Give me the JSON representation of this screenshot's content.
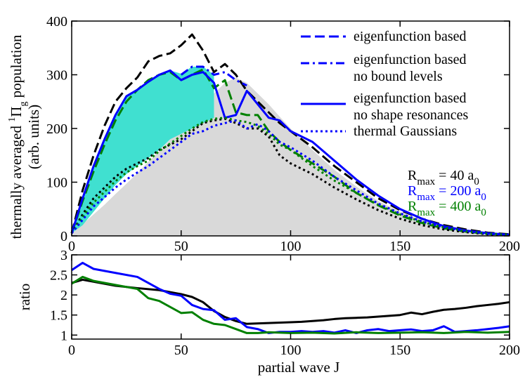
{
  "chart_data": [
    {
      "type": "line",
      "panel": "top",
      "ylabel_main": "thermally averaged ",
      "ylabel_sup": "1",
      "ylabel_pi": "Π",
      "ylabel_sub": "g",
      "ylabel_end": " population",
      "ylabel_units": "(arb. units)",
      "xlim": [
        0,
        200
      ],
      "ylim": [
        0,
        400
      ],
      "xticks": [
        0,
        50,
        100,
        150,
        200
      ],
      "yticks": [
        0,
        100,
        200,
        300,
        400
      ],
      "legend": [
        {
          "label": "eigenfunction based",
          "style": "dashed"
        },
        {
          "label": "eigenfunction based",
          "label2": "no bound levels",
          "style": "dashdot"
        },
        {
          "label": "eigenfunction based",
          "label2": "no shape resonances",
          "style": "solid"
        },
        {
          "label": "thermal Gaussians",
          "style": "dotted"
        }
      ],
      "rmax_labels": [
        {
          "pre": "R",
          "sub": "max",
          "mid": " = 40 a",
          "sub2": "0",
          "color": "#000000"
        },
        {
          "pre": "R",
          "sub": "max",
          "mid": " = 200 a",
          "sub2": "0",
          "color": "#0000ff"
        },
        {
          "pre": "R",
          "sub": "max",
          "mid": " = 400 a",
          "sub2": "0",
          "color": "#008000"
        }
      ],
      "shaded_regions": [
        {
          "name": "gray-area",
          "color": "#d9d9d9",
          "x": [
            0,
            5,
            10,
            15,
            20,
            25,
            30,
            35,
            40,
            45,
            50,
            55,
            60,
            65,
            70,
            75,
            80,
            85,
            90,
            95,
            100,
            110,
            120,
            130,
            140,
            150,
            160,
            170,
            180,
            190,
            200
          ],
          "y": [
            5,
            22,
            40,
            58,
            78,
            97,
            117,
            138,
            158,
            180,
            200,
            220,
            242,
            265,
            285,
            295,
            285,
            265,
            245,
            222,
            200,
            160,
            123,
            92,
            65,
            45,
            29,
            17,
            9,
            4,
            2
          ]
        },
        {
          "name": "cyan-area",
          "color": "#40e0d0",
          "upper_x": [
            0,
            5,
            10,
            15,
            20,
            25,
            30,
            35,
            40,
            45,
            50,
            55,
            60,
            65
          ],
          "upper_y": [
            5,
            70,
            130,
            180,
            225,
            260,
            272,
            287,
            300,
            308,
            302,
            315,
            315,
            300
          ],
          "lower_x": [
            65,
            60,
            55,
            50,
            45,
            40,
            35,
            30,
            25,
            20,
            15,
            10,
            5,
            0
          ],
          "lower_y": [
            220,
            210,
            200,
            190,
            180,
            160,
            145,
            130,
            115,
            95,
            70,
            45,
            20,
            5
          ]
        }
      ],
      "series": [
        {
          "name": "R=40 dashed",
          "color": "#000000",
          "style": "dashed",
          "x": [
            0,
            5,
            10,
            15,
            20,
            25,
            30,
            35,
            40,
            45,
            50,
            55,
            60,
            65,
            70,
            75,
            80,
            85,
            90,
            95,
            100,
            110,
            120,
            130,
            140,
            150,
            160,
            170,
            180,
            190,
            200
          ],
          "y": [
            5,
            85,
            150,
            205,
            250,
            275,
            295,
            325,
            335,
            340,
            355,
            375,
            345,
            305,
            320,
            300,
            270,
            250,
            230,
            210,
            195,
            165,
            130,
            100,
            70,
            48,
            32,
            20,
            12,
            6,
            3
          ]
        },
        {
          "name": "R=400 dashed",
          "color": "#008000",
          "style": "dashed",
          "x": [
            0,
            5,
            10,
            15,
            20,
            25,
            30,
            35,
            40,
            45,
            50,
            55,
            60,
            65,
            70,
            75,
            80,
            85,
            90,
            95,
            100,
            110,
            120,
            130,
            140,
            150,
            160,
            170,
            180,
            190,
            200
          ],
          "y": [
            5,
            65,
            120,
            170,
            215,
            250,
            272,
            290,
            300,
            305,
            290,
            300,
            310,
            275,
            290,
            230,
            225,
            225,
            195,
            175,
            160,
            135,
            110,
            80,
            57,
            38,
            24,
            14,
            8,
            4,
            2
          ]
        },
        {
          "name": "R=200 dashdot",
          "color": "#0000ff",
          "style": "dashdot",
          "x": [
            50,
            55,
            60,
            65,
            70,
            75,
            80
          ],
          "y": [
            300,
            315,
            315,
            300,
            305,
            290,
            280
          ]
        },
        {
          "name": "R=200 solid",
          "color": "#0000ff",
          "style": "solid",
          "x": [
            0,
            5,
            10,
            15,
            20,
            25,
            30,
            35,
            40,
            45,
            50,
            55,
            60,
            65,
            70,
            75,
            80,
            85,
            90,
            95,
            100,
            110,
            120,
            130,
            140,
            150,
            160,
            170,
            180,
            190,
            200
          ],
          "y": [
            5,
            70,
            130,
            180,
            225,
            260,
            272,
            287,
            300,
            308,
            290,
            300,
            305,
            285,
            220,
            225,
            270,
            245,
            220,
            215,
            195,
            175,
            140,
            105,
            75,
            50,
            32,
            18,
            10,
            5,
            2
          ]
        },
        {
          "name": "R=40 dotted",
          "color": "#000000",
          "style": "dotted",
          "x": [
            0,
            5,
            10,
            15,
            20,
            25,
            30,
            35,
            40,
            45,
            50,
            55,
            60,
            65,
            70,
            75,
            80,
            85,
            90,
            95,
            100,
            110,
            120,
            130,
            140,
            150,
            160,
            170,
            180,
            190,
            200
          ],
          "y": [
            5,
            40,
            70,
            90,
            110,
            125,
            135,
            145,
            160,
            170,
            180,
            195,
            210,
            215,
            218,
            210,
            200,
            200,
            185,
            150,
            135,
            115,
            90,
            68,
            48,
            32,
            20,
            12,
            7,
            3,
            1
          ]
        },
        {
          "name": "R=400 dotted",
          "color": "#008000",
          "style": "dotted",
          "x": [
            0,
            5,
            10,
            15,
            20,
            25,
            30,
            35,
            40,
            45,
            50,
            55,
            60,
            65,
            70,
            75,
            80,
            85,
            90,
            95,
            100,
            110,
            120,
            130,
            140,
            150,
            160,
            170,
            180,
            190,
            200
          ],
          "y": [
            5,
            35,
            62,
            82,
            102,
            118,
            130,
            140,
            158,
            172,
            186,
            200,
            212,
            218,
            220,
            215,
            212,
            205,
            190,
            170,
            160,
            130,
            103,
            80,
            58,
            40,
            26,
            16,
            9,
            4,
            2
          ]
        },
        {
          "name": "R=200 dotted",
          "color": "#0000ff",
          "style": "dotted",
          "x": [
            0,
            5,
            10,
            15,
            20,
            25,
            30,
            35,
            40,
            45,
            50,
            55,
            60,
            65,
            70,
            75,
            80,
            85,
            90,
            95,
            100,
            110,
            120,
            130,
            140,
            150,
            160,
            170,
            180,
            190,
            200
          ],
          "y": [
            5,
            30,
            55,
            72,
            90,
            105,
            118,
            130,
            145,
            160,
            175,
            190,
            195,
            205,
            210,
            215,
            200,
            208,
            195,
            175,
            165,
            140,
            110,
            85,
            60,
            42,
            27,
            16,
            9,
            4,
            2
          ]
        }
      ]
    },
    {
      "type": "line",
      "panel": "bottom",
      "xlabel": "partial wave J",
      "ylabel": "ratio",
      "xlim": [
        0,
        200
      ],
      "ylim": [
        0.9,
        3.0
      ],
      "xticks": [
        0,
        50,
        100,
        150,
        200
      ],
      "yticks": [
        1,
        1.5,
        2,
        2.5,
        3
      ],
      "ytick_labels": [
        "1",
        "1.5",
        "2",
        "2.5",
        "3"
      ],
      "series": [
        {
          "name": "ratio R=40",
          "color": "#000000",
          "x": [
            0,
            5,
            10,
            20,
            30,
            40,
            50,
            55,
            60,
            65,
            70,
            75,
            80,
            90,
            100,
            105,
            110,
            115,
            120,
            125,
            130,
            135,
            140,
            145,
            150,
            155,
            160,
            165,
            170,
            175,
            180,
            185,
            190,
            195,
            200
          ],
          "y": [
            2.3,
            2.38,
            2.33,
            2.23,
            2.17,
            2.12,
            2.02,
            1.95,
            1.82,
            1.6,
            1.45,
            1.35,
            1.28,
            1.3,
            1.32,
            1.33,
            1.35,
            1.37,
            1.4,
            1.42,
            1.43,
            1.44,
            1.46,
            1.48,
            1.5,
            1.56,
            1.52,
            1.58,
            1.63,
            1.65,
            1.68,
            1.72,
            1.75,
            1.78,
            1.82
          ]
        },
        {
          "name": "ratio R=200",
          "color": "#0000ff",
          "x": [
            0,
            5,
            10,
            20,
            30,
            40,
            45,
            50,
            55,
            60,
            65,
            70,
            75,
            80,
            85,
            90,
            95,
            100,
            105,
            110,
            115,
            120,
            125,
            130,
            135,
            140,
            145,
            150,
            155,
            160,
            165,
            170,
            175,
            180,
            185,
            190,
            195,
            200
          ],
          "y": [
            2.62,
            2.8,
            2.65,
            2.55,
            2.45,
            2.15,
            2.03,
            1.98,
            1.75,
            1.65,
            1.62,
            1.38,
            1.42,
            1.2,
            1.15,
            1.05,
            1.08,
            1.08,
            1.1,
            1.08,
            1.1,
            1.06,
            1.12,
            1.05,
            1.12,
            1.15,
            1.1,
            1.12,
            1.14,
            1.1,
            1.12,
            1.22,
            1.08,
            1.1,
            1.12,
            1.15,
            1.18,
            1.22
          ]
        },
        {
          "name": "ratio R=400",
          "color": "#008000",
          "x": [
            0,
            5,
            10,
            20,
            30,
            35,
            40,
            50,
            55,
            60,
            65,
            70,
            75,
            80,
            85,
            90,
            100,
            110,
            120,
            130,
            140,
            150,
            160,
            170,
            180,
            190,
            200
          ],
          "y": [
            2.28,
            2.45,
            2.35,
            2.25,
            2.15,
            1.92,
            1.85,
            1.55,
            1.57,
            1.38,
            1.28,
            1.25,
            1.15,
            1.05,
            1.05,
            1.07,
            1.05,
            1.06,
            1.04,
            1.07,
            1.05,
            1.06,
            1.07,
            1.05,
            1.08,
            1.06,
            1.08
          ]
        }
      ]
    }
  ]
}
